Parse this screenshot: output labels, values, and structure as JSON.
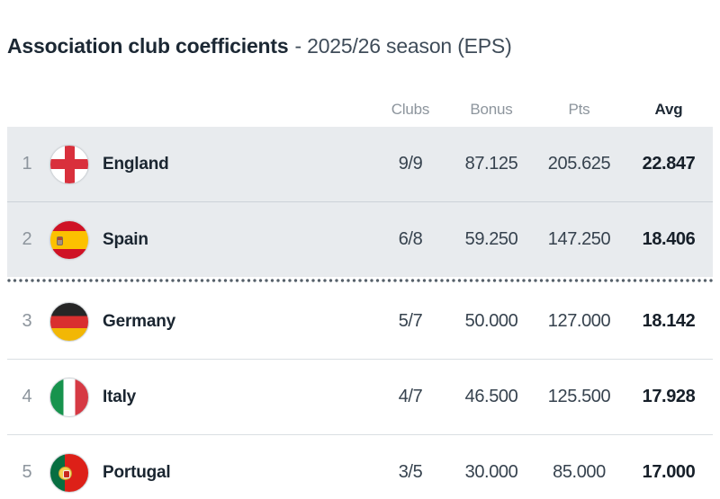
{
  "title": {
    "main": "Association club coefficients",
    "suffix": "- 2025/26 season (EPS)"
  },
  "table": {
    "headers": {
      "clubs": "Clubs",
      "bonus": "Bonus",
      "pts": "Pts",
      "avg": "Avg"
    },
    "rows": [
      {
        "rank": "1",
        "country": "England",
        "flag_icon": "england-flag-icon",
        "clubs": "9/9",
        "bonus": "87.125",
        "pts": "205.625",
        "avg": "22.847",
        "highlighted": true
      },
      {
        "rank": "2",
        "country": "Spain",
        "flag_icon": "spain-flag-icon",
        "clubs": "6/8",
        "bonus": "59.250",
        "pts": "147.250",
        "avg": "18.406",
        "highlighted": true
      },
      {
        "rank": "3",
        "country": "Germany",
        "flag_icon": "germany-flag-icon",
        "clubs": "5/7",
        "bonus": "50.000",
        "pts": "127.000",
        "avg": "18.142",
        "highlighted": false
      },
      {
        "rank": "4",
        "country": "Italy",
        "flag_icon": "italy-flag-icon",
        "clubs": "4/7",
        "bonus": "46.500",
        "pts": "125.500",
        "avg": "17.928",
        "highlighted": false
      },
      {
        "rank": "5",
        "country": "Portugal",
        "flag_icon": "portugal-flag-icon",
        "clubs": "3/5",
        "bonus": "30.000",
        "pts": "85.000",
        "avg": "17.000",
        "highlighted": false
      }
    ]
  },
  "colors": {
    "highlight_row_bg": "#e8ebee",
    "cutoff_dots": "#57616b",
    "title_text": "#1c2834",
    "muted_text": "#8d959d",
    "value_text": "#36424e"
  }
}
